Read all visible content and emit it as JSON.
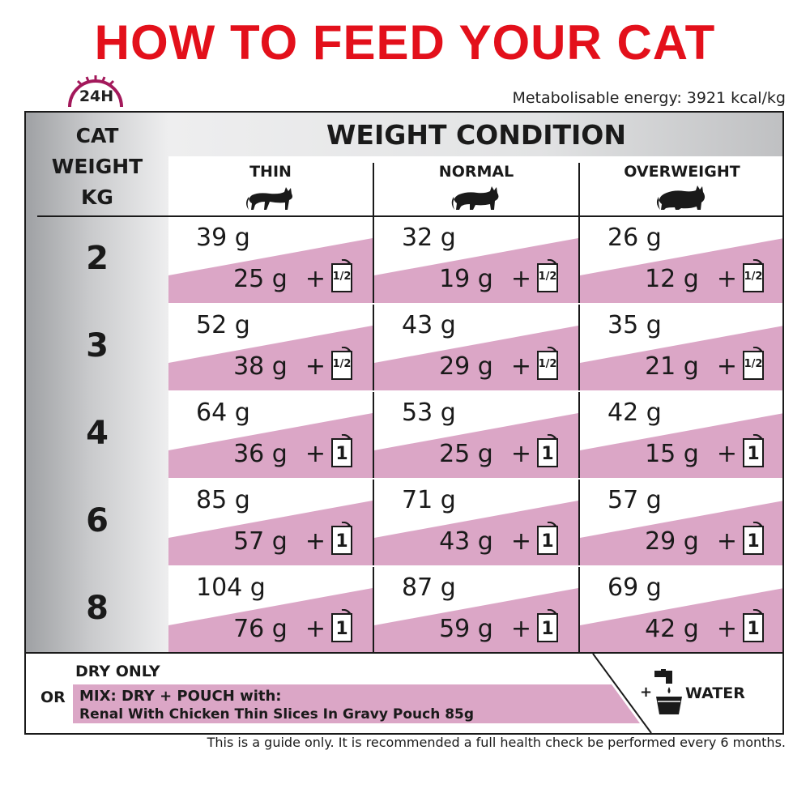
{
  "header": {
    "title": "HOW TO FEED YOUR CAT",
    "clock_label": "24H",
    "energy": "Metabolisable energy: 3921 kcal/kg"
  },
  "table": {
    "cat_weight_label": [
      "CAT",
      "WEIGHT",
      "KG"
    ],
    "condition_title": "WEIGHT CONDITION",
    "columns": [
      {
        "label": "THIN",
        "icon": "thin-cat-icon"
      },
      {
        "label": "NORMAL",
        "icon": "normal-cat-icon"
      },
      {
        "label": "OVERWEIGHT",
        "icon": "overweight-cat-icon"
      }
    ],
    "rows": [
      {
        "weight": "2",
        "cells": [
          {
            "dry": "39 g",
            "mix": "25 g",
            "plus": "+",
            "pouch": "1/2"
          },
          {
            "dry": "32 g",
            "mix": "19 g",
            "plus": "+",
            "pouch": "1/2"
          },
          {
            "dry": "26 g",
            "mix": "12 g",
            "plus": "+",
            "pouch": "1/2"
          }
        ]
      },
      {
        "weight": "3",
        "cells": [
          {
            "dry": "52 g",
            "mix": "38 g",
            "plus": "+",
            "pouch": "1/2"
          },
          {
            "dry": "43 g",
            "mix": "29 g",
            "plus": "+",
            "pouch": "1/2"
          },
          {
            "dry": "35 g",
            "mix": "21 g",
            "plus": "+",
            "pouch": "1/2"
          }
        ]
      },
      {
        "weight": "4",
        "cells": [
          {
            "dry": "64 g",
            "mix": "36 g",
            "plus": "+",
            "pouch": "1"
          },
          {
            "dry": "53 g",
            "mix": "25 g",
            "plus": "+",
            "pouch": "1"
          },
          {
            "dry": "42 g",
            "mix": "15 g",
            "plus": "+",
            "pouch": "1"
          }
        ]
      },
      {
        "weight": "6",
        "cells": [
          {
            "dry": "85 g",
            "mix": "57 g",
            "plus": "+",
            "pouch": "1"
          },
          {
            "dry": "71 g",
            "mix": "43 g",
            "plus": "+",
            "pouch": "1"
          },
          {
            "dry": "57 g",
            "mix": "29 g",
            "plus": "+",
            "pouch": "1"
          }
        ]
      },
      {
        "weight": "8",
        "cells": [
          {
            "dry": "104 g",
            "mix": "76 g",
            "plus": "+",
            "pouch": "1"
          },
          {
            "dry": "87 g",
            "mix": "59 g",
            "plus": "+",
            "pouch": "1"
          },
          {
            "dry": "69 g",
            "mix": "42 g",
            "plus": "+",
            "pouch": "1"
          }
        ]
      }
    ]
  },
  "footer": {
    "dry_only": "DRY ONLY",
    "or": "OR",
    "mix_line1": "MIX: DRY + POUCH with:",
    "mix_line2": "Renal With Chicken Thin Slices In Gravy Pouch 85g",
    "water_plus": "+",
    "water": "WATER",
    "disclaimer": "This is a guide only. It is recommended a full health check be performed every 6 months."
  },
  "colors": {
    "title_red": "#e3101b",
    "pink": "#dba6c6",
    "clock_magenta": "#a3195b",
    "grey_dark": "#9fa1a4"
  }
}
